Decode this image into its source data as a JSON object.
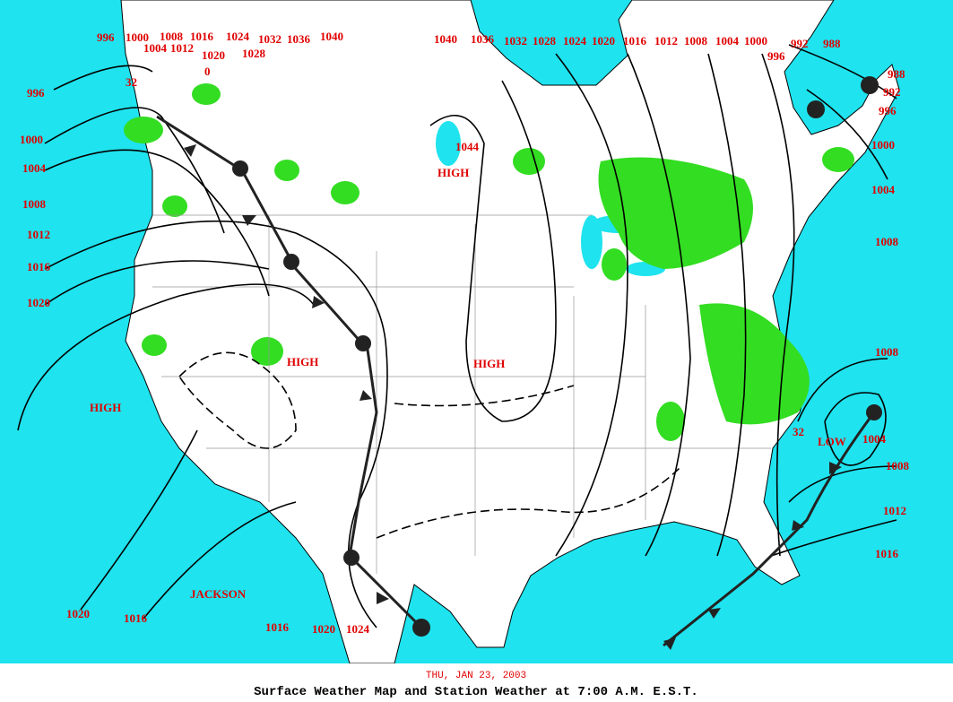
{
  "map": {
    "date": "THU, JAN 23, 2003",
    "title": "Surface Weather Map and Station Weather at 7:00 A.M. E.S.T.",
    "isobar_labels": [
      "996",
      "1000",
      "1004",
      "1008",
      "1012",
      "1016",
      "1020",
      "1024",
      "1028",
      "1032",
      "1036",
      "1040",
      "0",
      "32",
      "996",
      "1000",
      "1004",
      "1008",
      "1012",
      "1016",
      "1020",
      "1040",
      "1036",
      "1032",
      "1028",
      "1024",
      "1020",
      "1016",
      "1012",
      "1008",
      "1004",
      "1000",
      "996",
      "992",
      "988",
      "988",
      "992",
      "996",
      "1000",
      "1004",
      "1008",
      "1008",
      "1004",
      "1008",
      "1012",
      "1016",
      "32",
      "1044",
      "1020",
      "1016",
      "1016",
      "1020",
      "1024"
    ],
    "center_labels": [
      "HIGH",
      "HIGH",
      "HIGH",
      "HIGH",
      "LOW",
      "JACKSON"
    ]
  }
}
